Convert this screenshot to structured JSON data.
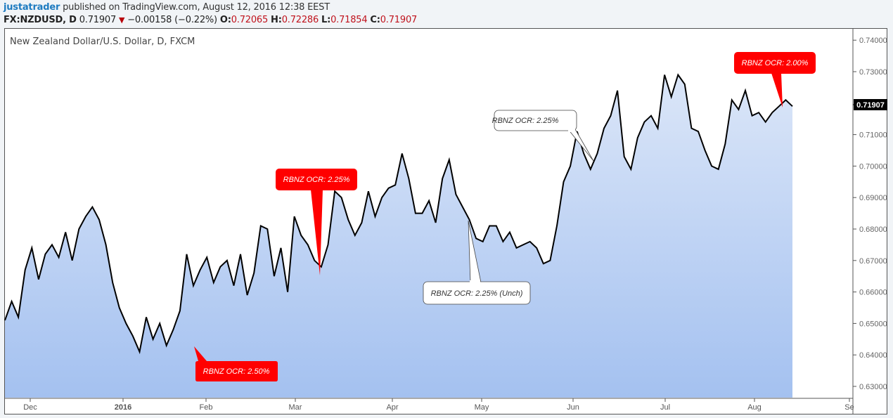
{
  "header": {
    "user": "justatrader",
    "published": "published on TradingView.com, August 12, 2016 12:38 EEST",
    "symbol": "FX:NZDUSD, D",
    "last": "0.71907",
    "change_icon": "down-triangle-icon",
    "change": "−0.00158 (−0.22%)",
    "open_label": "O:",
    "open": "0.72065",
    "high_label": "H:",
    "high": "0.72286",
    "low_label": "L:",
    "low": "0.71854",
    "close_label": "C:",
    "close": "0.71907"
  },
  "colors": {
    "line": "#000000",
    "fill_top": "#dbe6f8",
    "fill_bottom": "#a4c1f0",
    "callout_red": "#ff0000",
    "user_link": "#1e7bc0",
    "ohlc_value": "#c0121c",
    "last_price_badge": "#000000"
  },
  "chart_data": {
    "type": "area",
    "title": "New Zealand Dollar/U.S. Dollar, D, FXCM",
    "xlabel": "",
    "ylabel": "",
    "ylim": [
      0.625,
      0.7435
    ],
    "y_ticks": [
      "0.74000",
      "0.73000",
      "0.71000",
      "0.70000",
      "0.69000",
      "0.68000",
      "0.67000",
      "0.66000",
      "0.65000",
      "0.64000",
      "0.63000"
    ],
    "last_price_label": "0.71907",
    "x_ticks": [
      "Dec",
      "2016",
      "Feb",
      "Mar",
      "Apr",
      "May",
      "Jun",
      "Jul",
      "Aug",
      "Se"
    ],
    "grid": false,
    "legend": "none",
    "series": [
      {
        "name": "NZDUSD close",
        "approx_values_by_month": {
          "late_Nov_2015": [
            0.651,
            0.657,
            0.652,
            0.667,
            0.674,
            0.664
          ],
          "Dec_2015": [
            0.672,
            0.675,
            0.671,
            0.679,
            0.67,
            0.68,
            0.684,
            0.687,
            0.683,
            0.675,
            0.663,
            0.655,
            0.65
          ],
          "Jan_2016": [
            0.646,
            0.641,
            0.652,
            0.645,
            0.65,
            0.643,
            0.648
          ],
          "Feb_2016": [
            0.654,
            0.672,
            0.662,
            0.667,
            0.671,
            0.663,
            0.668,
            0.67,
            0.662,
            0.672,
            0.659,
            0.666,
            0.681,
            0.68
          ],
          "Mar_2016": [
            0.665,
            0.674,
            0.66,
            0.684,
            0.678,
            0.675,
            0.67,
            0.668,
            0.675,
            0.692,
            0.69,
            0.683,
            0.678,
            0.682
          ],
          "Apr_2016": [
            0.692,
            0.684,
            0.69,
            0.693,
            0.694,
            0.704,
            0.696,
            0.685,
            0.685,
            0.689,
            0.682
          ],
          "May_2016": [
            0.696,
            0.702,
            0.691,
            0.687,
            0.683,
            0.677,
            0.676,
            0.681,
            0.681,
            0.676,
            0.679,
            0.674,
            0.675,
            0.676,
            0.674,
            0.669,
            0.67
          ],
          "Jun_2016": [
            0.681,
            0.695,
            0.7,
            0.711,
            0.704,
            0.699,
            0.704,
            0.712,
            0.716,
            0.724,
            0.703,
            0.699,
            0.709,
            0.714
          ],
          "Jul_2016": [
            0.716,
            0.712,
            0.729,
            0.722,
            0.729,
            0.726,
            0.712,
            0.711,
            0.705,
            0.7,
            0.699
          ],
          "Aug_2016": [
            0.707,
            0.721,
            0.718,
            0.724,
            0.716,
            0.717,
            0.714,
            0.717,
            0.719,
            0.721,
            0.719
          ]
        }
      }
    ],
    "annotations": [
      {
        "text": "RBNZ OCR: 2.50%",
        "style": "red",
        "date_approx": "2016-01-28"
      },
      {
        "text": "RBNZ OCR: 2.25%",
        "style": "red",
        "date_approx": "2016-03-10"
      },
      {
        "text": "RBNZ OCR: 2.25% (Unch)",
        "style": "white",
        "date_approx": "2016-04-28"
      },
      {
        "text": "RBNZ OCR: 2.25%",
        "style": "white",
        "date_approx": "2016-06-09"
      },
      {
        "text": "RBNZ OCR: 2.00%",
        "style": "red",
        "date_approx": "2016-08-11"
      }
    ]
  }
}
